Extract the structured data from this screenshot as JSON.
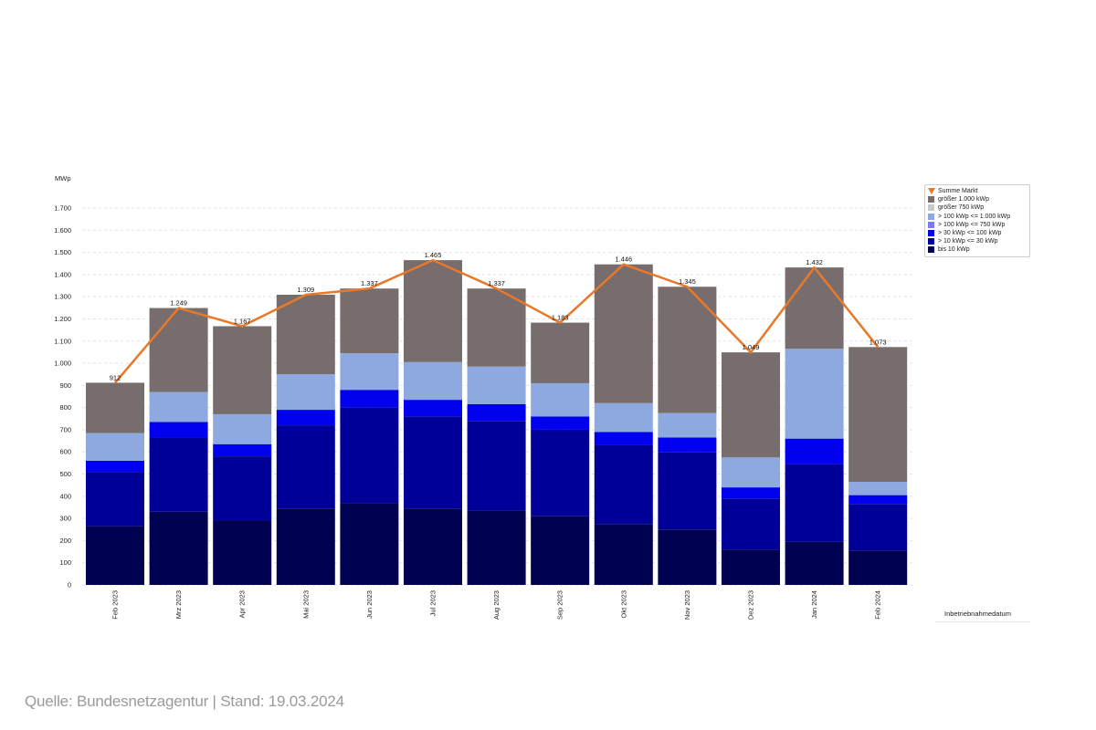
{
  "chart_data": {
    "type": "bar",
    "stacked": true,
    "unit_label": "MWp",
    "xlabel": "Inbetriebnahmedatum",
    "ylim": [
      0,
      1700
    ],
    "yticks": [
      0,
      100,
      200,
      300,
      400,
      500,
      600,
      700,
      800,
      900,
      1000,
      1100,
      1200,
      1300,
      1400,
      1500,
      1600,
      1700
    ],
    "ytick_labels": [
      "0",
      "100",
      "200",
      "300",
      "400",
      "500",
      "600",
      "700",
      "800",
      "900",
      "1.000",
      "1.100",
      "1.200",
      "1.300",
      "1.400",
      "1.500",
      "1.600",
      "1.700"
    ],
    "grid": true,
    "legend_position": "top-right",
    "categories": [
      "Feb 2023",
      "Mrz 2023",
      "Apr 2023",
      "Mai 2023",
      "Jun 2023",
      "Jul 2023",
      "Aug 2023",
      "Sep 2023",
      "Okt 2023",
      "Nov 2023",
      "Dez 2023",
      "Jan 2024",
      "Feb 2024"
    ],
    "series": [
      {
        "name": "bis 10 kWp",
        "color": "#000050",
        "values": [
          265,
          330,
          290,
          345,
          370,
          345,
          335,
          310,
          275,
          250,
          160,
          195,
          155
        ]
      },
      {
        "name": "> 10 kWp <= 30 kWp",
        "color": "#000099",
        "values": [
          245,
          335,
          290,
          375,
          430,
          415,
          405,
          390,
          355,
          350,
          230,
          350,
          210
        ]
      },
      {
        "name": "> 30 kWp <= 100 kWp",
        "color": "#0000EE",
        "values": [
          50,
          70,
          55,
          70,
          80,
          75,
          75,
          60,
          60,
          65,
          50,
          115,
          40
        ]
      },
      {
        "name": "> 100 kWp <= 750 kWp",
        "color": "#7A7AF5",
        "values": [
          0,
          0,
          0,
          0,
          0,
          0,
          0,
          0,
          0,
          0,
          0,
          0,
          0
        ]
      },
      {
        "name": "> 100 kWp <= 1.000 kWp",
        "color": "#8DA9E0",
        "values": [
          125,
          135,
          135,
          160,
          165,
          170,
          170,
          150,
          130,
          110,
          135,
          405,
          60
        ]
      },
      {
        "name": "größer 750 kWp",
        "color": "#C8C8C8",
        "values": [
          0,
          0,
          0,
          0,
          0,
          0,
          0,
          0,
          0,
          0,
          0,
          0,
          0
        ]
      },
      {
        "name": "größer 1.000 kWp",
        "color": "#786D6D",
        "values": [
          227,
          379,
          397,
          359,
          292,
          460,
          352,
          273,
          626,
          570,
          474,
          367,
          608
        ]
      }
    ],
    "line_series": {
      "name": "Summe Markt",
      "color": "#E8782A",
      "values": [
        912,
        1249,
        1167,
        1309,
        1337,
        1465,
        1337,
        1183,
        1446,
        1345,
        1049,
        1432,
        1073
      ],
      "labels": [
        "912",
        "1.249",
        "1.167",
        "1.309",
        "1.337",
        "1.465",
        "1.337",
        "1.183",
        "1.446",
        "1.345",
        "1.049",
        "1.432",
        "1.073"
      ]
    }
  },
  "legend": {
    "items": [
      {
        "label": "Summe Markt",
        "kind": "line",
        "color": "#E8782A"
      },
      {
        "label": "größer 1.000 kWp",
        "kind": "box",
        "color": "#786D6D"
      },
      {
        "label": "größer 750 kWp",
        "kind": "box",
        "color": "#C8C8C8"
      },
      {
        "label": "> 100 kWp <= 1.000 kWp",
        "kind": "box",
        "color": "#8DA9E0"
      },
      {
        "label": "> 100 kWp <= 750 kWp",
        "kind": "box",
        "color": "#7A7AF5"
      },
      {
        "label": "> 30 kWp <= 100 kWp",
        "kind": "box",
        "color": "#0000EE"
      },
      {
        "label": "> 10 kWp <= 30 kWp",
        "kind": "box",
        "color": "#000099"
      },
      {
        "label": "bis 10 kWp",
        "kind": "box",
        "color": "#000050"
      }
    ]
  },
  "footer": {
    "source": "Quelle: Bundesnetzagentur | Stand: 19.03.2024"
  }
}
